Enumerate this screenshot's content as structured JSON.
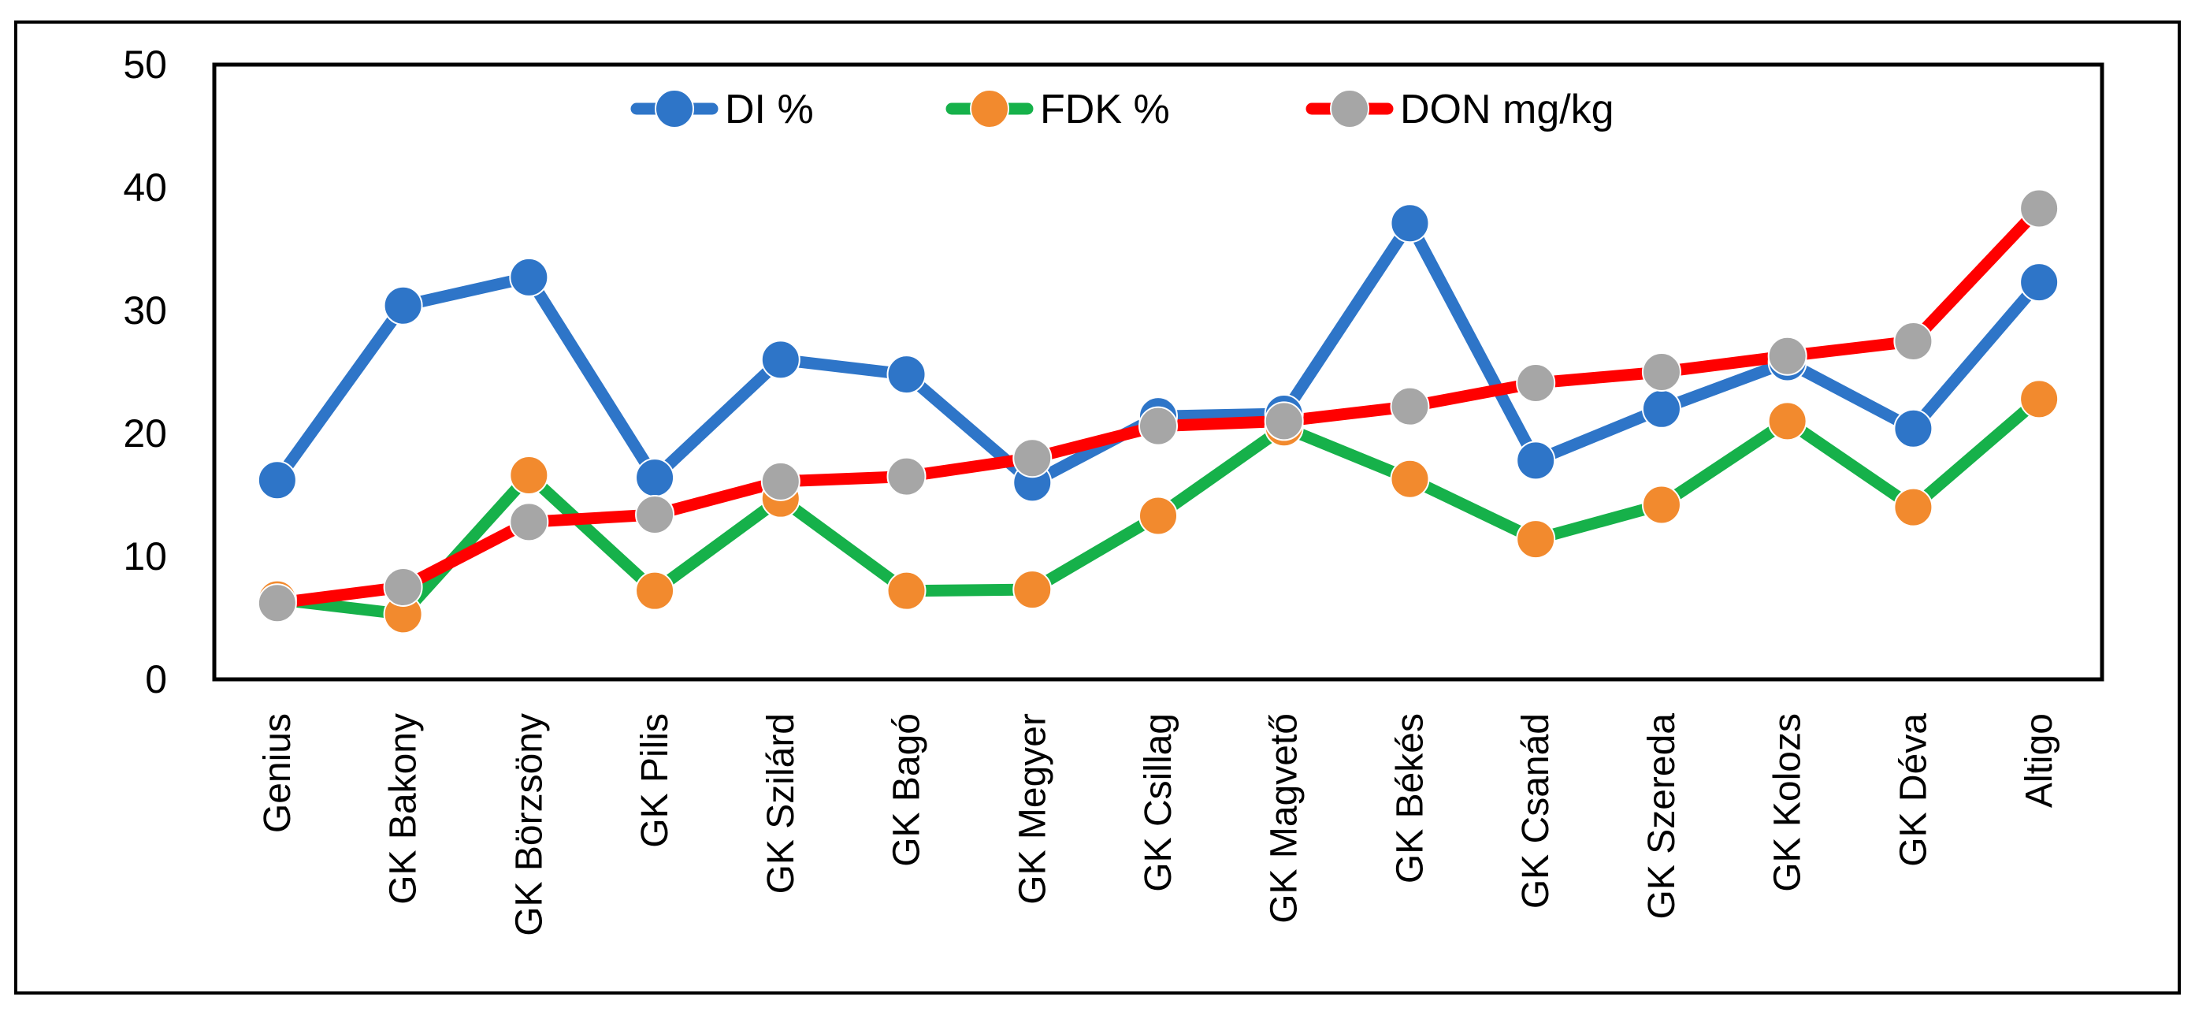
{
  "chart_data": {
    "type": "line",
    "title": "",
    "xlabel": "",
    "ylabel": "",
    "ylim": [
      0,
      50
    ],
    "yticks": [
      0,
      10,
      20,
      30,
      40,
      50
    ],
    "grid": false,
    "legend_position": "top-center",
    "categories": [
      "Genius",
      "GK Bakony",
      "GK Börzsöny",
      "GK Pilis",
      "GK Szilárd",
      "GK Bagó",
      "GK Megyer",
      "GK Csillag",
      "GK Magvető",
      "GK Békés",
      "GK Csanád",
      "GK Szereda",
      "GK Kolozs",
      "GK Déva",
      "Altigo"
    ],
    "series": [
      {
        "name": "DI %",
        "line_color": "#2E75C8",
        "marker_color": "#2E75C8",
        "values": [
          16.2,
          30.4,
          32.7,
          16.4,
          26.0,
          24.8,
          16.0,
          21.4,
          21.6,
          37.1,
          17.8,
          22.0,
          25.8,
          20.4,
          32.3
        ]
      },
      {
        "name": "FDK %",
        "line_color": "#16B14A",
        "marker_color": "#F28A2E",
        "values": [
          6.5,
          5.3,
          16.6,
          7.2,
          14.7,
          7.2,
          7.3,
          13.3,
          20.5,
          16.3,
          11.4,
          14.2,
          21.0,
          14.0,
          22.8
        ]
      },
      {
        "name": "DON mg/kg",
        "line_color": "#FF0000",
        "marker_color": "#A6A6A6",
        "values": [
          6.2,
          7.5,
          12.8,
          13.4,
          16.1,
          16.5,
          18.0,
          20.6,
          21.0,
          22.2,
          24.1,
          25.0,
          26.3,
          27.5,
          38.3
        ]
      }
    ]
  }
}
